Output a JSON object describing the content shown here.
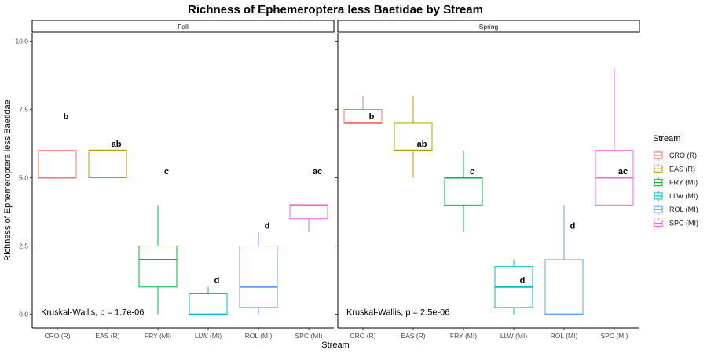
{
  "chart_data": {
    "type": "boxplot",
    "title": "Richness of Ephemeroptera less Baetidae by Stream",
    "xlabel": "Stream",
    "ylabel": "Richness of Ephemeroptera less Baetidae",
    "ylim": [
      -0.5,
      10.3
    ],
    "yticks": [
      "0.0",
      "2.5",
      "5.0",
      "7.5",
      "10.0"
    ],
    "ytick_values": [
      0,
      2.5,
      5,
      7.5,
      10
    ],
    "categories": [
      "CRO (R)",
      "EAS (R)",
      "FRY (MI)",
      "LLW (MI)",
      "ROL (MI)",
      "SPC (MI)"
    ],
    "legend": {
      "title": "Stream",
      "position": "right",
      "entries": [
        {
          "label": "CRO (R)",
          "color": "#F8766D"
        },
        {
          "label": "EAS (R)",
          "color": "#B79F00"
        },
        {
          "label": "FRY (MI)",
          "color": "#00BA38"
        },
        {
          "label": "LLW (MI)",
          "color": "#00BFC4"
        },
        {
          "label": "ROL (MI)",
          "color": "#619CFF"
        },
        {
          "label": "SPC (MI)",
          "color": "#F564E3"
        }
      ]
    },
    "panels": [
      {
        "name": "Fall",
        "stat_text": "Kruskal-Wallis, p = 1.7e-06",
        "boxes": [
          {
            "category": "CRO (R)",
            "min": 5,
            "q1": 5,
            "median": 5,
            "q3": 6,
            "max": 6,
            "letter": "b",
            "letter_y": 7.25
          },
          {
            "category": "EAS (R)",
            "min": 5,
            "q1": 5,
            "median": 6,
            "q3": 6,
            "max": 6,
            "letter": "ab",
            "letter_y": 6.25
          },
          {
            "category": "FRY (MI)",
            "min": 0,
            "q1": 1,
            "median": 2,
            "q3": 2.5,
            "max": 4,
            "letter": "c",
            "letter_y": 5.25
          },
          {
            "category": "LLW (MI)",
            "min": 0,
            "q1": 0,
            "median": 0,
            "q3": 0.75,
            "max": 1,
            "letter": "d",
            "letter_y": 1.25
          },
          {
            "category": "ROL (MI)",
            "min": 0,
            "q1": 0.25,
            "median": 1,
            "q3": 2.5,
            "max": 3,
            "letter": "d",
            "letter_y": 3.25
          },
          {
            "category": "SPC (MI)",
            "min": 3,
            "q1": 3.5,
            "median": 4,
            "q3": 4,
            "max": 4,
            "letter": "ac",
            "letter_y": 5.25
          }
        ]
      },
      {
        "name": "Spring",
        "stat_text": "Kruskal-Wallis, p = 2.5e-06",
        "boxes": [
          {
            "category": "CRO (R)",
            "min": 7,
            "q1": 7,
            "median": 7,
            "q3": 7.5,
            "max": 8,
            "letter": "b",
            "letter_y": 7.25
          },
          {
            "category": "EAS (R)",
            "min": 5,
            "q1": 6,
            "median": 6,
            "q3": 7,
            "max": 8,
            "letter": "ab",
            "letter_y": 6.25
          },
          {
            "category": "FRY (MI)",
            "min": 3,
            "q1": 4,
            "median": 5,
            "q3": 5,
            "max": 6,
            "letter": "c",
            "letter_y": 5.25
          },
          {
            "category": "LLW (MI)",
            "min": 0,
            "q1": 0.25,
            "median": 1,
            "q3": 1.75,
            "max": 2,
            "letter": "d",
            "letter_y": 1.25
          },
          {
            "category": "ROL (MI)",
            "min": 0,
            "q1": 0,
            "median": 0,
            "q3": 2,
            "max": 4,
            "letter": "d",
            "letter_y": 3.25
          },
          {
            "category": "SPC (MI)",
            "min": 4,
            "q1": 4,
            "median": 5,
            "q3": 6,
            "max": 9,
            "letter": "ac",
            "letter_y": 5.25
          }
        ]
      }
    ]
  }
}
